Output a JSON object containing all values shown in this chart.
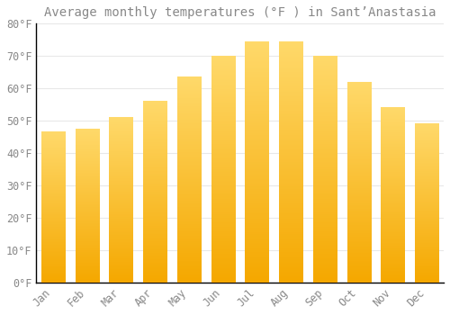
{
  "title": "Average monthly temperatures (°F ) in Sant’Anastasia",
  "months": [
    "Jan",
    "Feb",
    "Mar",
    "Apr",
    "May",
    "Jun",
    "Jul",
    "Aug",
    "Sep",
    "Oct",
    "Nov",
    "Dec"
  ],
  "values": [
    46.5,
    47.5,
    51.0,
    56.0,
    63.5,
    70.0,
    74.5,
    74.5,
    70.0,
    62.0,
    54.0,
    49.0
  ],
  "bar_color_top": "#F5A800",
  "bar_color_bottom": "#FFD96A",
  "background_color": "#FFFFFF",
  "plot_bg_color": "#FFFFFF",
  "grid_color": "#E8E8E8",
  "text_color": "#888888",
  "spine_color": "#000000",
  "ylim": [
    0,
    80
  ],
  "yticks": [
    0,
    10,
    20,
    30,
    40,
    50,
    60,
    70,
    80
  ],
  "ytick_labels": [
    "0°F",
    "10°F",
    "20°F",
    "30°F",
    "40°F",
    "50°F",
    "60°F",
    "70°F",
    "80°F"
  ],
  "title_fontsize": 10,
  "tick_fontsize": 8.5,
  "bar_width": 0.7
}
